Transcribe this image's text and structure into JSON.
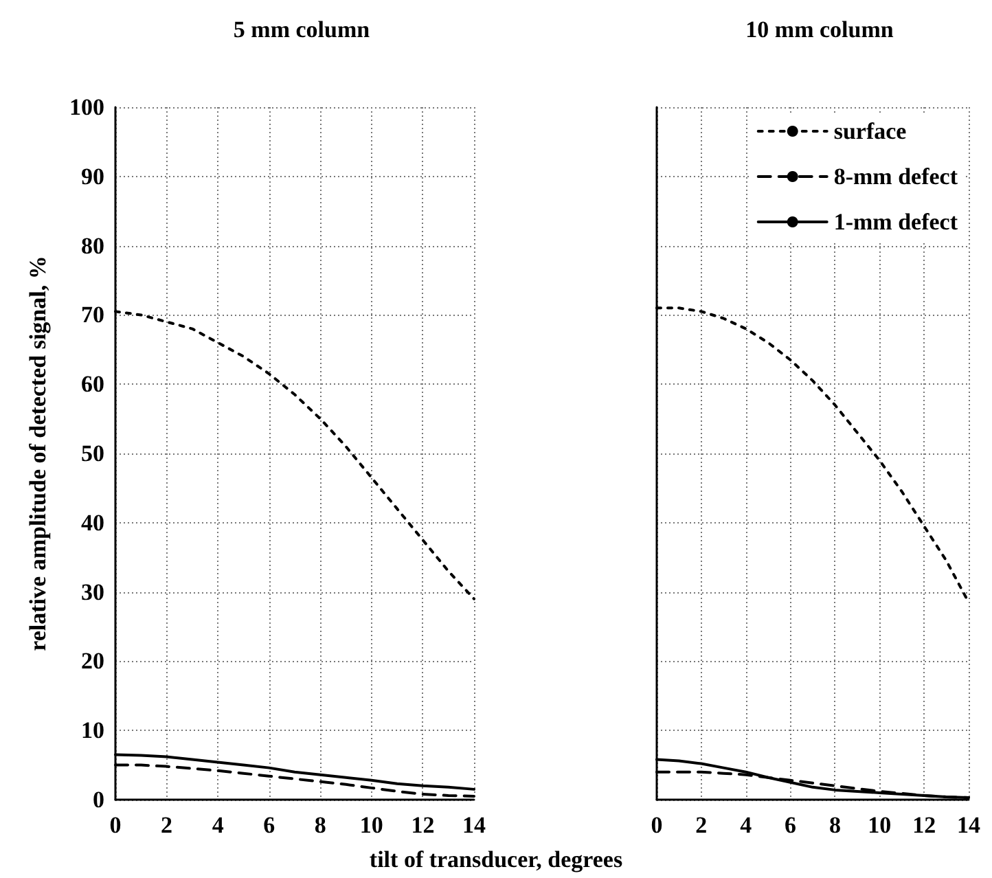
{
  "chart_data": [
    {
      "type": "line",
      "title": "5 mm column",
      "ylabel": "relative amplitude of detected signal, %",
      "xlabel": "tilt of transducer, degrees",
      "x": [
        0,
        1,
        2,
        3,
        4,
        5,
        6,
        7,
        8,
        9,
        10,
        11,
        12,
        13,
        14
      ],
      "xlim": [
        0,
        14
      ],
      "xticks": [
        0,
        2,
        4,
        6,
        8,
        10,
        12,
        14
      ],
      "ylim": [
        0,
        100
      ],
      "yticks": [
        0,
        10,
        20,
        30,
        40,
        50,
        60,
        70,
        80,
        90,
        100
      ],
      "grid": true,
      "marker": "none",
      "legend": false,
      "series": [
        {
          "color": "#000000",
          "line_style": "dotted",
          "values": [
            70.5,
            70,
            69,
            68,
            66,
            64,
            61.5,
            58.5,
            55,
            51,
            46.5,
            42,
            37.5,
            33,
            29
          ]
        },
        {
          "color": "#000000",
          "line_style": "dashed",
          "values": [
            5.0,
            5.0,
            4.8,
            4.5,
            4.2,
            3.8,
            3.4,
            3.0,
            2.6,
            2.2,
            1.7,
            1.2,
            0.8,
            0.6,
            0.5
          ]
        },
        {
          "color": "#000000",
          "line_style": "solid",
          "values": [
            6.5,
            6.4,
            6.2,
            5.8,
            5.4,
            5.0,
            4.6,
            4.0,
            3.6,
            3.2,
            2.8,
            2.3,
            2.0,
            1.8,
            1.5
          ]
        }
      ]
    },
    {
      "type": "line",
      "title": "10 mm column",
      "x": [
        0,
        1,
        2,
        3,
        4,
        5,
        6,
        7,
        8,
        9,
        10,
        11,
        12,
        13,
        14
      ],
      "xlim": [
        0,
        14
      ],
      "xticks": [
        0,
        2,
        4,
        6,
        8,
        10,
        12,
        14
      ],
      "ylim": [
        0,
        100
      ],
      "yticks": [
        0,
        10,
        20,
        30,
        40,
        50,
        60,
        70,
        80,
        90,
        100
      ],
      "tick_labels": "x",
      "grid": true,
      "marker": "none",
      "legend": "top right",
      "series": [
        {
          "name": "surface",
          "color": "#000000",
          "line_style": "dotted",
          "values": [
            71,
            71,
            70.5,
            69.5,
            68,
            66,
            63.5,
            60.5,
            57,
            53,
            49,
            44.5,
            39.5,
            34.5,
            28.5
          ]
        },
        {
          "name": "8-mm defect",
          "color": "#000000",
          "line_style": "dashed",
          "values": [
            4.0,
            4.0,
            4.0,
            3.8,
            3.6,
            3.2,
            2.8,
            2.4,
            2.0,
            1.6,
            1.2,
            0.9,
            0.6,
            0.4,
            0.3
          ]
        },
        {
          "name": "1-mm defect",
          "color": "#000000",
          "line_style": "solid",
          "values": [
            5.8,
            5.6,
            5.2,
            4.6,
            4.0,
            3.2,
            2.5,
            1.8,
            1.4,
            1.2,
            1.0,
            0.8,
            0.6,
            0.4,
            0.3
          ]
        }
      ]
    }
  ]
}
